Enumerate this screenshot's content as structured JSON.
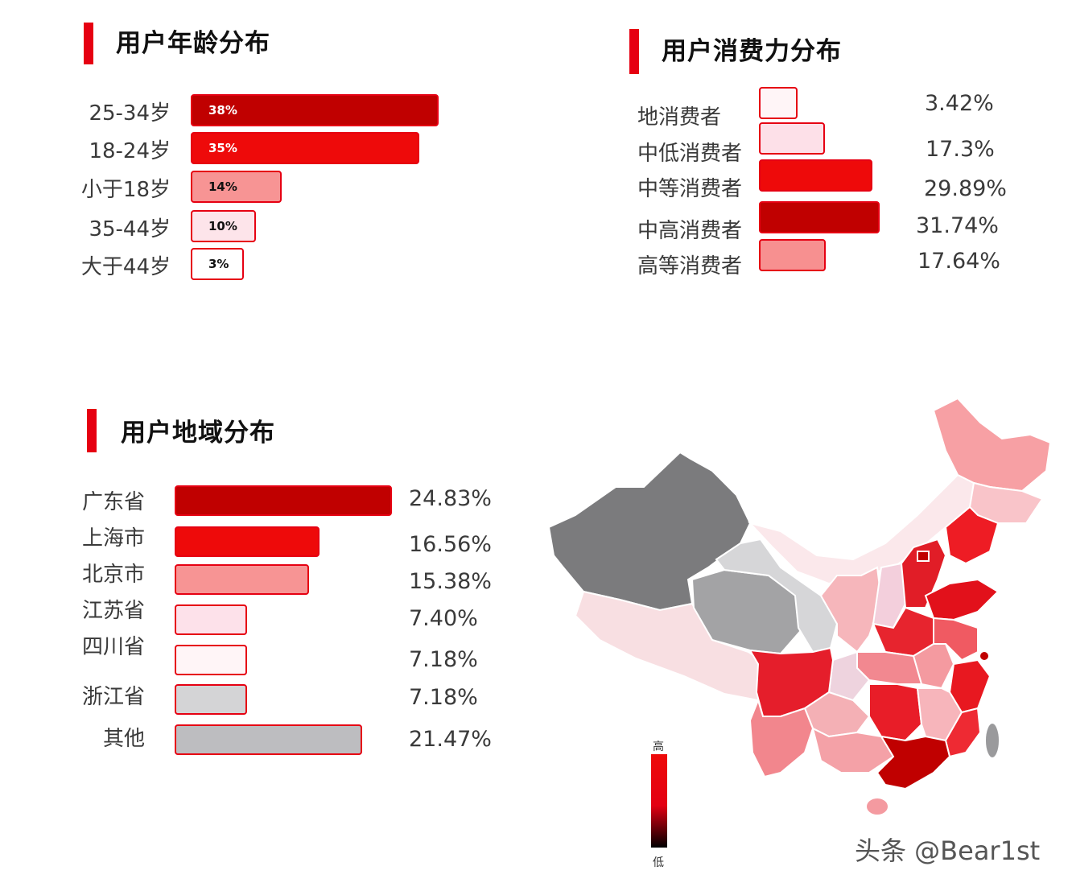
{
  "chart_data": [
    {
      "type": "bar",
      "title": "用户年龄分布",
      "categories": [
        "25-34岁",
        "18-24岁",
        "小于18岁",
        "35-44岁",
        "大于44岁"
      ],
      "values": [
        38,
        35,
        14,
        10,
        3
      ],
      "value_labels": [
        "38%",
        "35%",
        "14%",
        "10%",
        "3%"
      ],
      "colors": [
        "#c00000",
        "#ee0a0a",
        "#f79494",
        "#fde4ea",
        "#ffffff"
      ],
      "label_colors": [
        "#ffffff",
        "#ffffff",
        "#111111",
        "#111111",
        "#111111"
      ],
      "orientation": "horizontal"
    },
    {
      "type": "bar",
      "title": "用户消费力分布",
      "categories": [
        "地消费者",
        "中低消费者",
        "中等消费者",
        "中高消费者",
        "高等消费者"
      ],
      "values": [
        3.42,
        17.3,
        29.89,
        31.74,
        17.64
      ],
      "value_labels": [
        "3.42%",
        "17.3%",
        "29.89%",
        "31.74%",
        "17.64%"
      ],
      "colors": [
        "#fff5f7",
        "#fde0e8",
        "#ee0a0a",
        "#c00000",
        "#f79090"
      ],
      "orientation": "horizontal"
    },
    {
      "type": "bar",
      "title": "用户地域分布",
      "categories": [
        "广东省",
        "上海市",
        "北京市",
        "江苏省",
        "四川省",
        "浙江省",
        "其他"
      ],
      "values": [
        24.83,
        16.56,
        15.38,
        7.4,
        7.18,
        7.18,
        21.47
      ],
      "value_labels": [
        "24.83%",
        "16.56%",
        "15.38%",
        "7.40%",
        "7.18%",
        "7.18%",
        "21.47%"
      ],
      "colors": [
        "#c00000",
        "#ee0a0a",
        "#f79494",
        "#fde1ea",
        "#fff5f7",
        "#d4d4d6",
        "#bdbdc0"
      ],
      "orientation": "horizontal"
    }
  ],
  "map": {
    "legend_high": "高",
    "legend_low": "低"
  },
  "watermark": "头条 @Bear1st"
}
